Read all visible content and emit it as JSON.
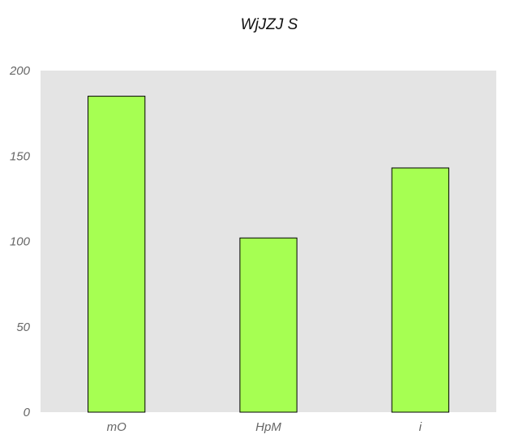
{
  "chart_data": {
    "type": "bar",
    "title": "WjJZJ S",
    "categories": [
      "mO",
      "HpM",
      "i"
    ],
    "values": [
      185,
      102,
      143
    ],
    "xlabel": "",
    "ylabel": "",
    "ylim": [
      0,
      200
    ],
    "yticks": [
      0,
      50,
      100,
      150,
      200
    ],
    "grid": false,
    "colors": {
      "bar_fill": "#a6ff52",
      "bar_stroke": "#000000",
      "plot_background": "#e4e4e4"
    }
  }
}
